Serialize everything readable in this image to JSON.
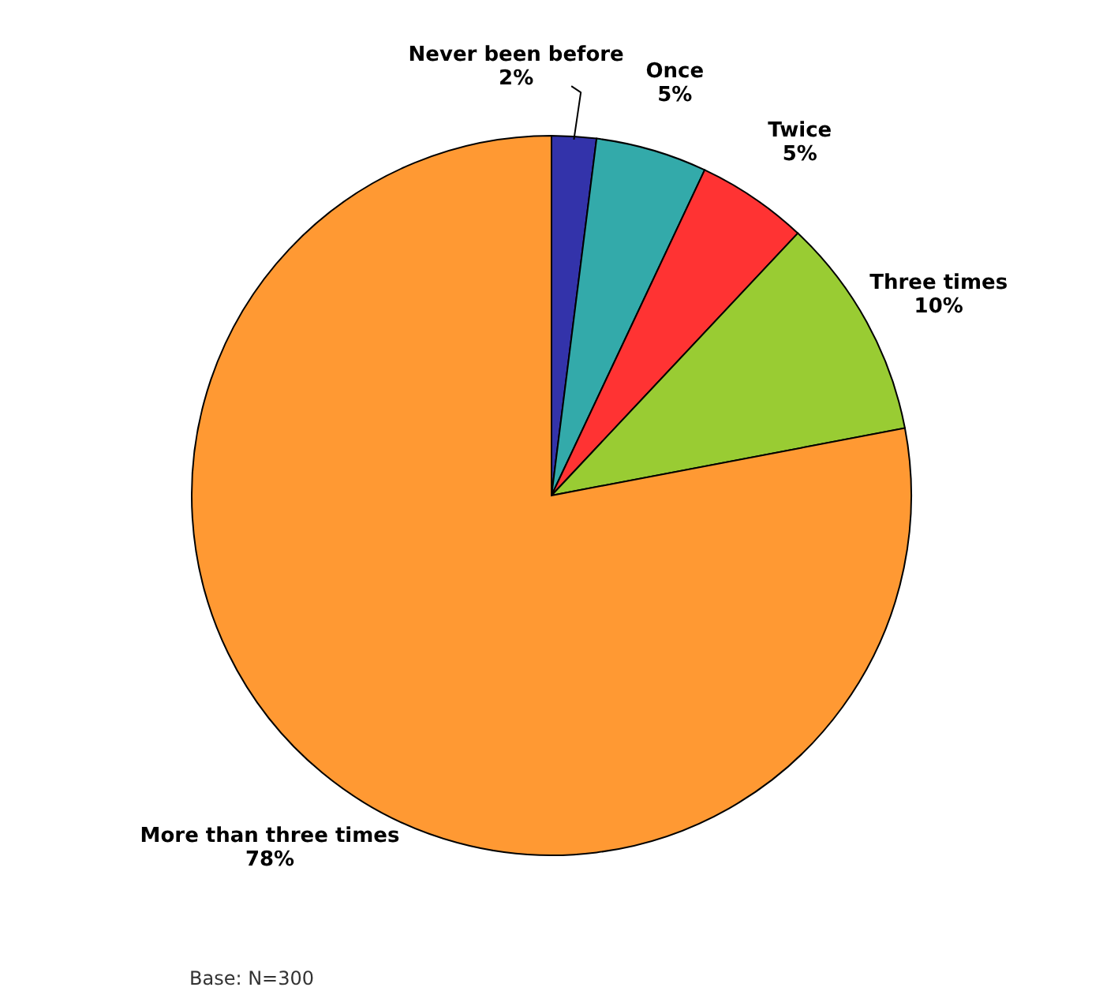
{
  "chart_data": {
    "type": "pie",
    "categories": [
      "Never been before",
      "Once",
      "Twice",
      "Three times",
      "More than three times"
    ],
    "values": [
      2,
      5,
      5,
      10,
      78
    ],
    "value_labels": [
      "2%",
      "5%",
      "5%",
      "10%",
      "78%"
    ],
    "colors": [
      "#3333aa",
      "#33aaaa",
      "#ff3333",
      "#99cc33",
      "#ff9933"
    ],
    "annotations": [
      "Base: N=300"
    ]
  }
}
